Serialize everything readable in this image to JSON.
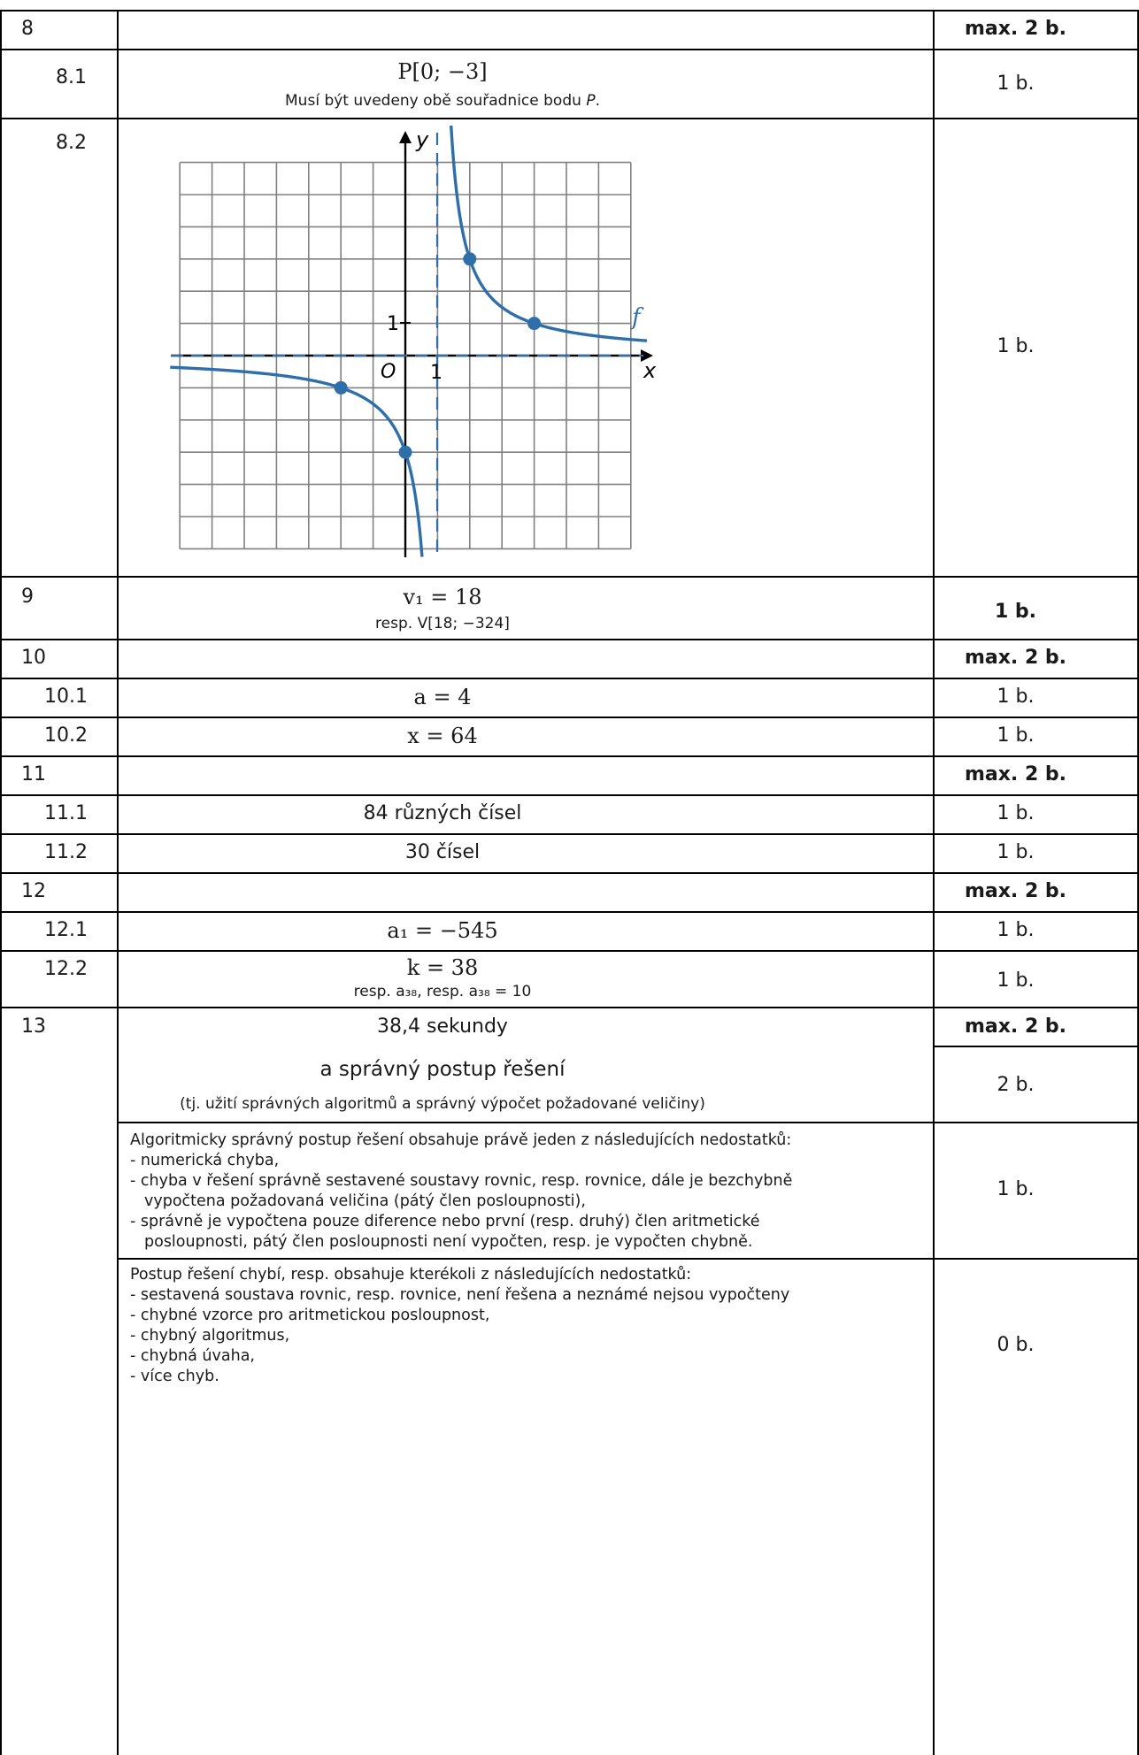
{
  "rows": {
    "r8": {
      "num": "8",
      "points": "max. 2 b."
    },
    "r8_1": {
      "num": "8.1",
      "answer": "P[0; −3]",
      "note_prefix": "Musí být uvedeny obě souřadnice bodu ",
      "note_var": "P",
      "note_suffix": ".",
      "points": "1 b."
    },
    "r8_2": {
      "num": "8.2",
      "points": "1 b."
    },
    "r9": {
      "num": "9",
      "answer": "v₁ = 18",
      "note": "resp. V[18; −324]",
      "points": "1 b."
    },
    "r10": {
      "num": "10",
      "points": "max. 2 b."
    },
    "r10_1": {
      "num": "10.1",
      "answer": "a = 4",
      "points": "1 b."
    },
    "r10_2": {
      "num": "10.2",
      "answer": "x = 64",
      "points": "1 b."
    },
    "r11": {
      "num": "11",
      "points": "max. 2 b."
    },
    "r11_1": {
      "num": "11.1",
      "answer": "84 různých čísel",
      "points": "1 b."
    },
    "r11_2": {
      "num": "11.2",
      "answer": "30 čísel",
      "points": "1 b."
    },
    "r12": {
      "num": "12",
      "points": "max. 2 b."
    },
    "r12_1": {
      "num": "12.1",
      "answer": "a₁ = −545",
      "points": "1 b."
    },
    "r12_2": {
      "num": "12.2",
      "answer": "k = 38",
      "note": "resp.  a₃₈,    resp.  a₃₈ = 10",
      "points": "1 b."
    },
    "r13": {
      "num": "13",
      "answer": "38,4 sekundy",
      "points_max": "max. 2 b.",
      "sub_answer": "a správný postup řešení",
      "sub_note": "(tj. užití správných algoritmů a správný výpočet požadované veličiny)",
      "points_full": "2 b.",
      "partial_intro": "Algoritmicky správný postup řešení obsahuje právě jeden z následujících nedostatků:",
      "partial_items": [
        "- numerická chyba,",
        "- chyba v řešení správně sestavené soustavy rovnic, resp. rovnice, dále je bezchybně",
        "vypočtena požadovaná veličina (pátý člen posloupnosti),",
        "- správně je vypočtena pouze diference nebo první (resp. druhý) člen aritmetické",
        "posloupnosti, pátý člen posloupnosti není vypočten, resp. je vypočten chybně."
      ],
      "points_partial": "1 b.",
      "zero_intro": "Postup řešení chybí, resp. obsahuje kterékoli z následujících nedostatků:",
      "zero_items": [
        "- sestavená soustava rovnic, resp. rovnice, není řešena a neznámé nejsou vypočteny",
        "- chybné vzorce pro aritmetickou posloupnost,",
        "- chybný algoritmus,",
        "- chybná úvaha,",
        "- více chyb."
      ],
      "points_zero": "0 b."
    }
  },
  "graph": {
    "x_axis_label": "x",
    "y_axis_label": "y",
    "origin_label": "O",
    "x_tick_label": "1",
    "y_tick_label": "1",
    "function_label": "f",
    "colors": {
      "curve": "#2e6faa",
      "grid": "#808080",
      "axis": "#000000",
      "point": "#2e6faa"
    },
    "grid_x_range": [
      -7,
      7
    ],
    "grid_y_range": [
      -6,
      6
    ],
    "vertical_asymptote_x": 1,
    "horizontal_asymptote_y": 0,
    "marked_points": [
      {
        "x": -2,
        "y": -1
      },
      {
        "x": 0,
        "y": -3
      },
      {
        "x": 2,
        "y": 3
      },
      {
        "x": 4,
        "y": 1
      }
    ]
  }
}
